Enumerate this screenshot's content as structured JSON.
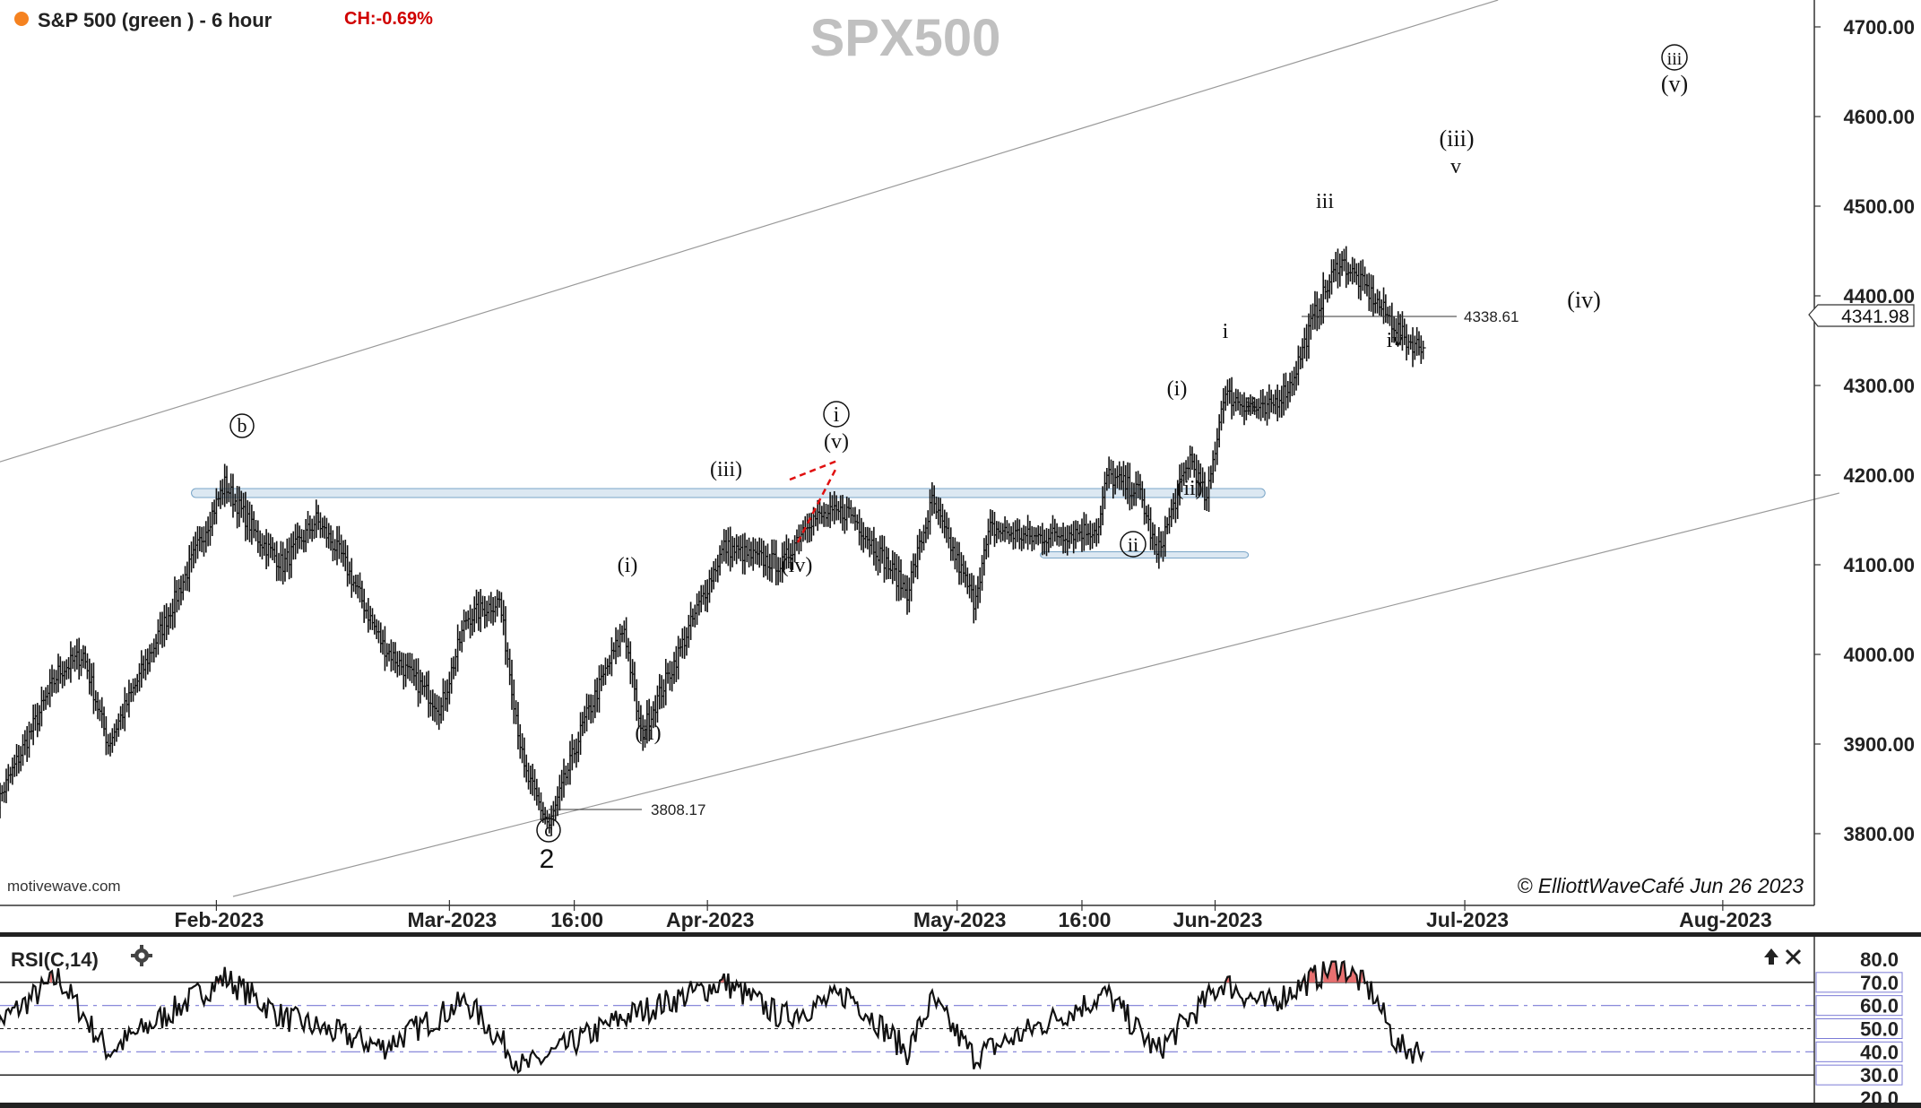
{
  "header": {
    "symbol_label": "S&P 500 (green ) - 6 hour",
    "change_label": "CH:-0.69%",
    "watermark": "SPX500",
    "source": "motivewave.com",
    "copyright": "© ElliottWaveCafé Jun 26 2023"
  },
  "colors": {
    "dot": "#f58220",
    "change": "#d00000",
    "bars": "#111111",
    "channel": "#9a9a9a",
    "zone_fill": "#dce8f2",
    "zone_stroke": "#7aa6c8",
    "triangle": "#e01010",
    "rsi_fill": "#e87070",
    "watermark": "#c0c0c0"
  },
  "price_axis": {
    "ticks": [
      "4700.00",
      "4600.00",
      "4500.00",
      "4400.00",
      "4300.00",
      "4200.00",
      "4100.00",
      "4000.00",
      "3900.00",
      "3800.00"
    ],
    "current_price_label": "4341.98"
  },
  "time_axis": {
    "ticks": [
      "Feb-2023",
      "Mar-2023",
      "16:00",
      "Apr-2023",
      "May-2023",
      "16:00",
      "Jun-2023",
      "Jul-2023",
      "Aug-2023"
    ]
  },
  "markers": {
    "low_price_label": "3808.17",
    "recent_low_label": "4338.61"
  },
  "wave_labels": {
    "b": "b",
    "c": "c",
    "two": "2",
    "i_small": "(i)",
    "ii_small": "(ii)",
    "iii_small": "(iii)",
    "iv_small": "(iv)",
    "v_small": "(v)",
    "i_circ": "i",
    "ii_circ": "ii",
    "i_jun": "(i)",
    "ii_jun": "(ii)",
    "i_minor": "i",
    "ii_minor": "ii",
    "iii_minor": "iii",
    "iv_minor": "iv",
    "iii_proj": "(iii)",
    "v_proj": "v",
    "iv_proj": "(iv)",
    "iii_circ_proj": "iii",
    "v_proj2": "(v)"
  },
  "rsi": {
    "title": "RSI(C,14)",
    "settings_icon": "gear-icon",
    "maximize_icon": "arrow-up-icon",
    "close_icon": "close-icon",
    "ticks": [
      "80.0",
      "70.0",
      "60.0",
      "50.0",
      "40.0",
      "30.0",
      "20.0"
    ]
  },
  "chart_data": [
    {
      "type": "ohlc",
      "title": "SPX500",
      "timeframe": "6 hour",
      "x_range": [
        "2023-01-06",
        "2023-08-12"
      ],
      "ylim": [
        3720,
        4730
      ],
      "last_price": 4341.98,
      "annotated_prices": [
        3808.17,
        4338.61
      ],
      "anchor_points": [
        {
          "t": "2023-01-05",
          "price": 3820
        },
        {
          "t": "2023-01-09",
          "price": 3900
        },
        {
          "t": "2023-01-13",
          "price": 3980
        },
        {
          "t": "2023-01-16",
          "price": 4000
        },
        {
          "t": "2023-01-19",
          "price": 3900
        },
        {
          "t": "2023-01-22",
          "price": 3960
        },
        {
          "t": "2023-01-27",
          "price": 4060
        },
        {
          "t": "2023-02-02",
          "price": 4190
        },
        {
          "t": "2023-02-06",
          "price": 4130
        },
        {
          "t": "2023-02-09",
          "price": 4100
        },
        {
          "t": "2023-02-13",
          "price": 4150
        },
        {
          "t": "2023-02-16",
          "price": 4110
        },
        {
          "t": "2023-02-21",
          "price": 4010
        },
        {
          "t": "2023-02-24",
          "price": 3980
        },
        {
          "t": "2023-02-28",
          "price": 3940
        },
        {
          "t": "2023-03-03",
          "price": 4040
        },
        {
          "t": "2023-03-07",
          "price": 4060
        },
        {
          "t": "2023-03-10",
          "price": 3870
        },
        {
          "t": "2023-03-13",
          "price": 3808.17
        },
        {
          "t": "2023-03-17",
          "price": 3920
        },
        {
          "t": "2023-03-22",
          "price": 4030
        },
        {
          "t": "2023-03-24",
          "price": 3910
        },
        {
          "t": "2023-03-28",
          "price": 3990
        },
        {
          "t": "2023-04-03",
          "price": 4120
        },
        {
          "t": "2023-04-06",
          "price": 4110
        },
        {
          "t": "2023-04-10",
          "price": 4100
        },
        {
          "t": "2023-04-13",
          "price": 4150
        },
        {
          "t": "2023-04-18",
          "price": 4160
        },
        {
          "t": "2023-04-25",
          "price": 4070
        },
        {
          "t": "2023-04-28",
          "price": 4170
        },
        {
          "t": "2023-05-03",
          "price": 4060
        },
        {
          "t": "2023-05-05",
          "price": 4140
        },
        {
          "t": "2023-05-10",
          "price": 4130
        },
        {
          "t": "2023-05-18",
          "price": 4140
        },
        {
          "t": "2023-05-19",
          "price": 4200
        },
        {
          "t": "2023-05-23",
          "price": 4180
        },
        {
          "t": "2023-05-25",
          "price": 4110
        },
        {
          "t": "2023-05-29",
          "price": 4220
        },
        {
          "t": "2023-05-31",
          "price": 4170
        },
        {
          "t": "2023-06-02",
          "price": 4290
        },
        {
          "t": "2023-06-07",
          "price": 4270
        },
        {
          "t": "2023-06-10",
          "price": 4300
        },
        {
          "t": "2023-06-13",
          "price": 4380
        },
        {
          "t": "2023-06-16",
          "price": 4440
        },
        {
          "t": "2023-06-19",
          "price": 4410
        },
        {
          "t": "2023-06-24",
          "price": 4350
        },
        {
          "t": "2023-06-26",
          "price": 4341.98
        }
      ],
      "channel_lines": [
        {
          "from": {
            "t": "2023-01-05",
            "price": 4212
          },
          "to": {
            "t": "2023-07-05",
            "price": 4730
          }
        },
        {
          "from": {
            "t": "2023-02-03",
            "price": 3730
          },
          "to": {
            "t": "2023-08-15",
            "price": 4180
          }
        }
      ],
      "zones": [
        {
          "t_from": "2023-01-29",
          "t_to": "2023-06-07",
          "price": 4180
        },
        {
          "t_from": "2023-05-11",
          "t_to": "2023-06-05",
          "price": 4111
        }
      ]
    },
    {
      "type": "line",
      "title": "RSI(C,14)",
      "ylim": [
        20,
        80
      ],
      "overbought": 70,
      "oversold": 30,
      "anchor_points": [
        {
          "t": "2023-01-05",
          "price": 50
        },
        {
          "t": "2023-01-13",
          "price": 72
        },
        {
          "t": "2023-01-19",
          "price": 40
        },
        {
          "t": "2023-02-02",
          "price": 72
        },
        {
          "t": "2023-02-09",
          "price": 55
        },
        {
          "t": "2023-02-21",
          "price": 42
        },
        {
          "t": "2023-03-03",
          "price": 62
        },
        {
          "t": "2023-03-10",
          "price": 33
        },
        {
          "t": "2023-03-22",
          "price": 55
        },
        {
          "t": "2023-04-03",
          "price": 70
        },
        {
          "t": "2023-04-10",
          "price": 55
        },
        {
          "t": "2023-04-18",
          "price": 65
        },
        {
          "t": "2023-04-25",
          "price": 40
        },
        {
          "t": "2023-04-28",
          "price": 62
        },
        {
          "t": "2023-05-03",
          "price": 38
        },
        {
          "t": "2023-05-19",
          "price": 65
        },
        {
          "t": "2023-05-25",
          "price": 40
        },
        {
          "t": "2023-06-02",
          "price": 70
        },
        {
          "t": "2023-06-07",
          "price": 60
        },
        {
          "t": "2023-06-16",
          "price": 78
        },
        {
          "t": "2023-06-20",
          "price": 65
        },
        {
          "t": "2023-06-23",
          "price": 42
        },
        {
          "t": "2023-06-26",
          "price": 40
        }
      ]
    }
  ]
}
